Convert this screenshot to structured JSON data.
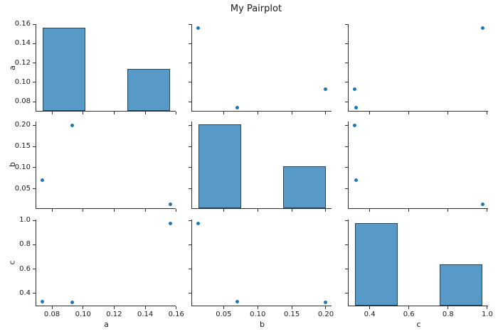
{
  "chart_data": {
    "type": "pairplot",
    "title": "My Pairplot",
    "variables": [
      "a",
      "b",
      "c"
    ],
    "diagonal_type": "bar",
    "observations": [
      {
        "a": 0.074,
        "b": 0.07,
        "c": 0.33
      },
      {
        "a": 0.093,
        "b": 0.2,
        "c": 0.325
      },
      {
        "a": 0.156,
        "b": 0.013,
        "c": 0.975
      }
    ],
    "axes": {
      "a": {
        "label": "a",
        "lim": [
          0.0699,
          0.1601
        ],
        "ticks": [
          0.08,
          0.1,
          0.12,
          0.14,
          0.16
        ],
        "tick_labels": [
          "0.08",
          "0.10",
          "0.12",
          "0.14",
          "0.16"
        ]
      },
      "b": {
        "label": "b",
        "lim": [
          0.0037,
          0.2094
        ],
        "ticks": [
          0.05,
          0.1,
          0.15,
          0.2
        ],
        "tick_labels": [
          "0.05",
          "0.10",
          "0.15",
          "0.20"
        ]
      },
      "c": {
        "label": "c",
        "lim": [
          0.2925,
          1.0075
        ],
        "ticks": [
          0.4,
          0.6,
          0.8,
          1.0
        ],
        "tick_labels": [
          "0.4",
          "0.6",
          "0.8",
          "1.0"
        ]
      }
    },
    "diagonal": {
      "count_lim": [
        0,
        2.1
      ],
      "bars": {
        "a": [
          {
            "from": 0.074,
            "to": 0.1013,
            "count": 2
          },
          {
            "from": 0.1287,
            "to": 0.156,
            "count": 1
          }
        ],
        "b": [
          {
            "from": 0.013,
            "to": 0.0753,
            "count": 2
          },
          {
            "from": 0.1377,
            "to": 0.2,
            "count": 1
          }
        ],
        "c": [
          {
            "from": 0.325,
            "to": 0.5417,
            "count": 2
          },
          {
            "from": 0.7583,
            "to": 0.975,
            "count": 1
          }
        ]
      }
    },
    "style": {
      "point_color": "#1f77b4",
      "bar_fill": "#5799c7",
      "bar_edge": "#28455e",
      "spine_color": "#303030",
      "text_color": "#1a1a1a",
      "background": "#ffffff"
    }
  }
}
